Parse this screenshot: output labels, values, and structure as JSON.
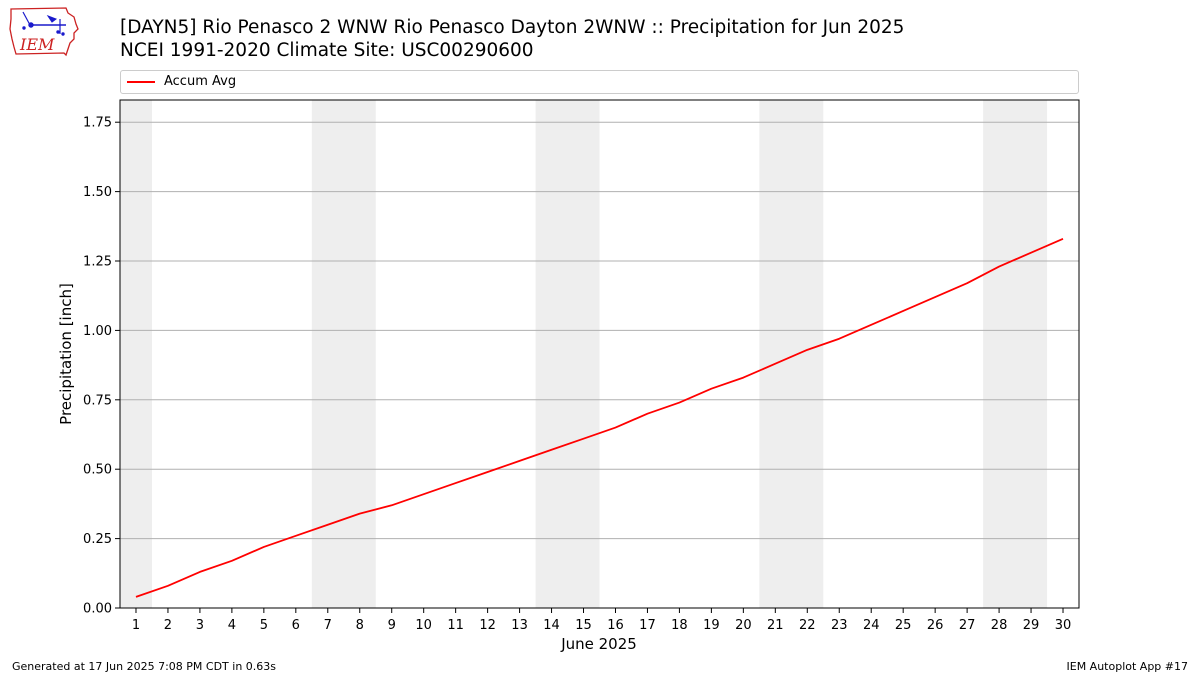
{
  "header": {
    "title_line1": "[DAYN5] Rio Penasco 2 WNW Rio Penasco Dayton 2WNW :: Precipitation for Jun 2025",
    "title_line2": "NCEI 1991-2020 Climate Site: USC00290600"
  },
  "logo": {
    "text": "IEM",
    "icon": "iem-iowa-logo-icon"
  },
  "footer": {
    "left": "Generated at 17 Jun 2025 7:08 PM CDT in 0.63s",
    "right": "IEM Autoplot App #17"
  },
  "colors": {
    "series": "#ff0000",
    "weekend_shade": "#eeeeee",
    "grid": "#b0b0b0",
    "logo_red": "#cc2222",
    "logo_blue": "#1a1acc"
  },
  "chart_data": {
    "type": "line",
    "xlabel": "June 2025",
    "ylabel": "Precipitation [inch]",
    "xlim": [
      0.5,
      30.5
    ],
    "ylim": [
      0,
      1.83
    ],
    "x_ticks": [
      1,
      2,
      3,
      4,
      5,
      6,
      7,
      8,
      9,
      10,
      11,
      12,
      13,
      14,
      15,
      16,
      17,
      18,
      19,
      20,
      21,
      22,
      23,
      24,
      25,
      26,
      27,
      28,
      29,
      30
    ],
    "y_ticks": [
      0.0,
      0.25,
      0.5,
      0.75,
      1.0,
      1.25,
      1.5,
      1.75
    ],
    "y_tick_labels": [
      "0.00",
      "0.25",
      "0.50",
      "0.75",
      "1.00",
      "1.25",
      "1.50",
      "1.75"
    ],
    "grid": "horizontal",
    "legend": {
      "placement": "top",
      "entries": [
        "Accum Avg"
      ]
    },
    "weekend_shading": [
      [
        0.5,
        1.5
      ],
      [
        6.5,
        8.5
      ],
      [
        13.5,
        15.5
      ],
      [
        20.5,
        22.5
      ],
      [
        27.5,
        29.5
      ]
    ],
    "series": [
      {
        "name": "Accum Avg",
        "x": [
          1,
          2,
          3,
          4,
          5,
          6,
          7,
          8,
          9,
          10,
          11,
          12,
          13,
          14,
          15,
          16,
          17,
          18,
          19,
          20,
          21,
          22,
          23,
          24,
          25,
          26,
          27,
          28,
          29,
          30
        ],
        "values": [
          0.04,
          0.08,
          0.13,
          0.17,
          0.22,
          0.26,
          0.3,
          0.34,
          0.37,
          0.41,
          0.45,
          0.49,
          0.53,
          0.57,
          0.61,
          0.65,
          0.7,
          0.74,
          0.79,
          0.83,
          0.88,
          0.93,
          0.97,
          1.02,
          1.07,
          1.12,
          1.17,
          1.23,
          1.28,
          1.33
        ]
      }
    ]
  }
}
